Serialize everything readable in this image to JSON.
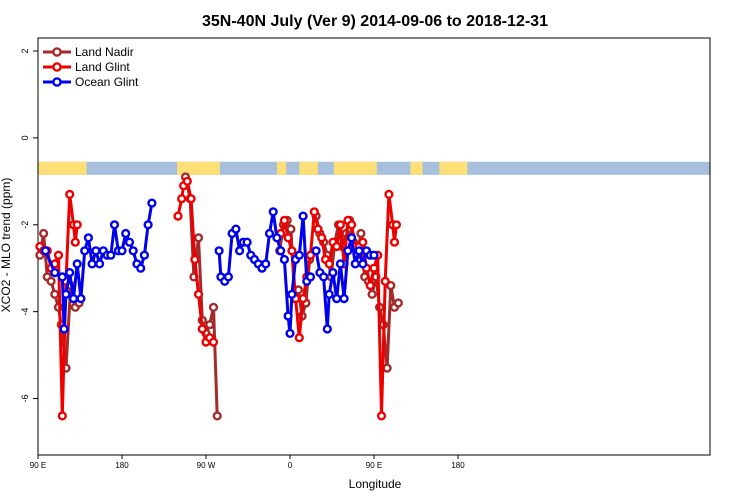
{
  "chart_data": {
    "type": "line",
    "title": "35N-40N July (Ver 9)   2014-09-06 to 2018-12-31",
    "xlabel": "Longitude",
    "ylabel": "XCO2 - MLO trend (ppm)",
    "xlim": [
      0,
      720
    ],
    "ylim": [
      -7.3,
      2.3
    ],
    "x_ticks": [
      {
        "value": 0,
        "label": "90 E"
      },
      {
        "value": 90,
        "label": "180"
      },
      {
        "value": 180,
        "label": "90 W"
      },
      {
        "value": 270,
        "label": "0"
      },
      {
        "value": 360,
        "label": "90 E"
      },
      {
        "value": 450,
        "label": "180"
      }
    ],
    "y_ticks": [
      {
        "value": 2,
        "label": "2"
      },
      {
        "value": 0,
        "label": "0"
      },
      {
        "value": -2,
        "label": "-2"
      },
      {
        "value": -4,
        "label": "-4"
      },
      {
        "value": -6,
        "label": "-6"
      }
    ],
    "legend": {
      "position": "top-left"
    },
    "land_mask_band": {
      "y_range": [
        -0.85,
        -0.55
      ],
      "ocean_color": "#a5bfdc",
      "land_color": "#fddf77",
      "land_x_ranges": [
        [
          0,
          52
        ],
        [
          149,
          195
        ],
        [
          256,
          266
        ],
        [
          280,
          300
        ],
        [
          317,
          363
        ],
        [
          399,
          412
        ],
        [
          430,
          460
        ]
      ]
    },
    "series": [
      {
        "name": "Land Nadir",
        "color": "#a52a2a",
        "segments": [
          [
            [
              2,
              -2.7
            ],
            [
              6,
              -2.2
            ],
            [
              10,
              -3.2
            ],
            [
              14,
              -3.3
            ],
            [
              18,
              -3.6
            ],
            [
              22,
              -3.9
            ],
            [
              25,
              -4.3
            ],
            [
              30,
              -5.3
            ],
            [
              35,
              -3.4
            ],
            [
              40,
              -3.9
            ],
            [
              44,
              -3.8
            ]
          ],
          [
            [
              158,
              -0.9
            ],
            [
              163,
              -1.4
            ],
            [
              167,
              -3.2
            ],
            [
              172,
              -2.3
            ],
            [
              176,
              -4.2
            ],
            [
              180,
              -4.5
            ],
            [
              184,
              -4.3
            ],
            [
              188,
              -3.9
            ],
            [
              192,
              -6.4
            ]
          ],
          [
            [
              259,
              -2.6
            ],
            [
              263,
              -2.0
            ],
            [
              267,
              -1.9
            ],
            [
              271,
              -2.1
            ],
            [
              275,
              -3.7
            ],
            [
              279,
              -3.5
            ],
            [
              283,
              -4.1
            ],
            [
              287,
              -3.8
            ],
            [
              291,
              -2.8
            ]
          ],
          [
            [
              298,
              -1.8
            ],
            [
              302,
              -2.2
            ],
            [
              306,
              -2.4
            ],
            [
              310,
              -2.7
            ],
            [
              314,
              -3.2
            ],
            [
              318,
              -2.4
            ],
            [
              322,
              -2.0
            ],
            [
              326,
              -2.5
            ],
            [
              330,
              -2.2
            ],
            [
              334,
              -1.9
            ],
            [
              338,
              -2.4
            ],
            [
              342,
              -2.7
            ],
            [
              346,
              -2.2
            ],
            [
              350,
              -3.2
            ],
            [
              354,
              -3.3
            ],
            [
              358,
              -3.6
            ],
            [
              362,
              -3.2
            ],
            [
              366,
              -3.9
            ],
            [
              370,
              -4.3
            ],
            [
              374,
              -5.3
            ],
            [
              378,
              -3.4
            ],
            [
              382,
              -3.9
            ],
            [
              386,
              -3.8
            ]
          ]
        ]
      },
      {
        "name": "Land Glint",
        "color": "#ee0000",
        "segments": [
          [
            [
              2,
              -2.5
            ],
            [
              6,
              -2.6
            ],
            [
              10,
              -2.6
            ],
            [
              14,
              -3.0
            ],
            [
              18,
              -2.9
            ],
            [
              22,
              -2.7
            ],
            [
              26,
              -6.4
            ],
            [
              30,
              -3.3
            ],
            [
              34,
              -1.3
            ],
            [
              38,
              -2.0
            ],
            [
              40,
              -2.4
            ],
            [
              42,
              -2.0
            ]
          ],
          [
            [
              150,
              -1.8
            ],
            [
              154,
              -1.4
            ],
            [
              156,
              -1.1
            ],
            [
              160,
              -1.0
            ],
            [
              164,
              -1.4
            ],
            [
              168,
              -2.8
            ],
            [
              172,
              -3.6
            ],
            [
              176,
              -4.4
            ],
            [
              180,
              -4.7
            ],
            [
              184,
              -4.6
            ],
            [
              188,
              -4.7
            ]
          ],
          [
            [
              260,
              -2.2
            ],
            [
              264,
              -1.9
            ],
            [
              268,
              -2.3
            ],
            [
              272,
              -2.6
            ],
            [
              276,
              -3.7
            ],
            [
              280,
              -4.6
            ],
            [
              284,
              -3.7
            ],
            [
              288,
              -3.2
            ],
            [
              292,
              -2.7
            ],
            [
              296,
              -1.7
            ],
            [
              300,
              -2.1
            ],
            [
              304,
              -2.3
            ],
            [
              308,
              -2.8
            ],
            [
              312,
              -2.9
            ],
            [
              316,
              -2.4
            ],
            [
              320,
              -2.5
            ],
            [
              324,
              -2.0
            ],
            [
              328,
              -2.9
            ],
            [
              332,
              -1.9
            ],
            [
              336,
              -2.0
            ],
            [
              340,
              -2.5
            ],
            [
              344,
              -2.5
            ],
            [
              348,
              -2.4
            ],
            [
              352,
              -3.0
            ],
            [
              356,
              -3.4
            ],
            [
              360,
              -3.0
            ],
            [
              364,
              -2.7
            ],
            [
              368,
              -6.4
            ],
            [
              372,
              -3.3
            ],
            [
              376,
              -1.3
            ],
            [
              380,
              -2.0
            ],
            [
              382,
              -2.4
            ],
            [
              384,
              -2.0
            ]
          ]
        ]
      },
      {
        "name": "Ocean Glint",
        "color": "#0000ee",
        "segments": [
          [
            [
              8,
              -2.6
            ],
            [
              18,
              -3.1
            ],
            [
              26,
              -3.2
            ],
            [
              28,
              -4.4
            ],
            [
              30,
              -3.6
            ],
            [
              34,
              -3.1
            ],
            [
              38,
              -3.7
            ],
            [
              42,
              -2.9
            ],
            [
              46,
              -3.7
            ],
            [
              50,
              -2.6
            ],
            [
              54,
              -2.3
            ],
            [
              58,
              -2.9
            ],
            [
              62,
              -2.6
            ],
            [
              66,
              -2.9
            ],
            [
              70,
              -2.6
            ],
            [
              74,
              -2.7
            ],
            [
              78,
              -2.7
            ],
            [
              82,
              -2.0
            ],
            [
              86,
              -2.6
            ],
            [
              90,
              -2.6
            ],
            [
              94,
              -2.2
            ],
            [
              98,
              -2.4
            ],
            [
              102,
              -2.6
            ],
            [
              106,
              -2.9
            ],
            [
              110,
              -3.0
            ],
            [
              114,
              -2.7
            ],
            [
              118,
              -2.0
            ],
            [
              122,
              -1.5
            ]
          ],
          [
            [
              194,
              -2.6
            ],
            [
              196,
              -3.2
            ],
            [
              200,
              -3.3
            ],
            [
              204,
              -3.2
            ],
            [
              208,
              -2.2
            ],
            [
              212,
              -2.1
            ],
            [
              216,
              -2.6
            ],
            [
              220,
              -2.4
            ],
            [
              224,
              -2.4
            ],
            [
              228,
              -2.7
            ],
            [
              232,
              -2.8
            ],
            [
              236,
              -2.9
            ],
            [
              240,
              -3.0
            ],
            [
              244,
              -2.9
            ],
            [
              248,
              -2.2
            ],
            [
              252,
              -1.7
            ],
            [
              256,
              -2.3
            ],
            [
              260,
              -2.6
            ],
            [
              264,
              -2.8
            ],
            [
              268,
              -4.1
            ],
            [
              270,
              -4.5
            ],
            [
              272,
              -3.6
            ],
            [
              276,
              -2.8
            ],
            [
              280,
              -2.7
            ],
            [
              284,
              -1.8
            ],
            [
              288,
              -3.3
            ],
            [
              292,
              -3.2
            ]
          ],
          [
            [
              298,
              -2.6
            ],
            [
              302,
              -3.1
            ],
            [
              306,
              -3.2
            ],
            [
              310,
              -4.4
            ],
            [
              312,
              -3.6
            ],
            [
              316,
              -3.1
            ],
            [
              320,
              -3.7
            ],
            [
              324,
              -2.9
            ],
            [
              328,
              -3.7
            ],
            [
              332,
              -2.6
            ],
            [
              336,
              -2.3
            ],
            [
              340,
              -2.9
            ],
            [
              344,
              -2.6
            ],
            [
              348,
              -2.9
            ],
            [
              352,
              -2.6
            ],
            [
              356,
              -2.7
            ],
            [
              360,
              -2.7
            ]
          ]
        ]
      }
    ]
  }
}
